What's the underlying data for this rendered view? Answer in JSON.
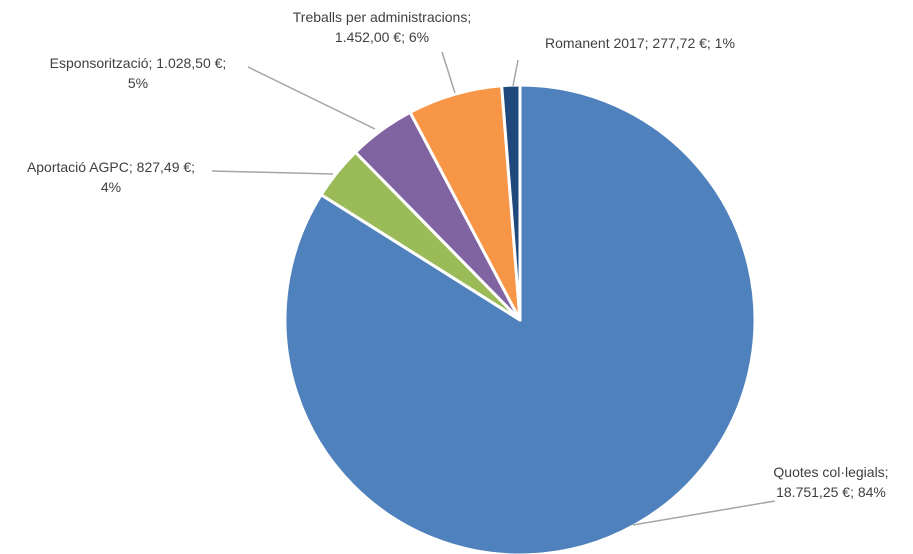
{
  "chart_data": {
    "type": "pie",
    "title": "",
    "slices": [
      {
        "name": "Quotes col·legials",
        "amount": "18.751,25 €",
        "percent": "84%",
        "value": 18751.25,
        "color": "#4F81BD"
      },
      {
        "name": "Aportació AGPC",
        "amount": "827,49 €",
        "percent": "4%",
        "value": 827.49,
        "color": "#9BBB59"
      },
      {
        "name": "Esponsorització",
        "amount": "1.028,50 €",
        "percent": "5%",
        "value": 1028.5,
        "color": "#8064A2"
      },
      {
        "name": "Treballs per administracions",
        "amount": "1.452,00 €",
        "percent": "6%",
        "value": 1452.0,
        "color": "#F79646"
      },
      {
        "name": "Romanent 2017",
        "amount": "277,72 €",
        "percent": "1%",
        "value": 277.72,
        "color": "#1F497D"
      }
    ]
  },
  "labels": {
    "quotes": {
      "line1": "Quotes col·legials;",
      "line2": "18.751,25 €; 84%"
    },
    "agpc": {
      "line1": "Aportació AGPC; 827,49 €;",
      "line2": "4%"
    },
    "espons": {
      "line1": "Esponsorització; 1.028,50 €;",
      "line2": "5%"
    },
    "treballs": {
      "line1": "Treballs per administracions;",
      "line2": "1.452,00 €; 6%"
    },
    "romanent": {
      "line1": "Romanent 2017; 277,72 €; 1%"
    }
  }
}
